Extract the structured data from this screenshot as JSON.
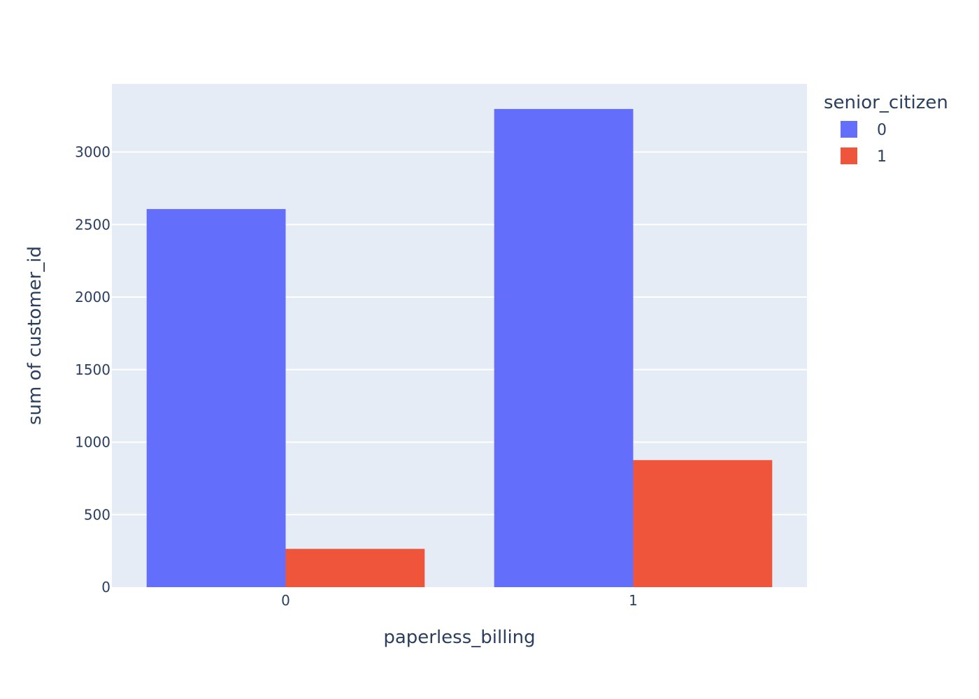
{
  "chart_data": {
    "type": "bar",
    "barmode": "group",
    "title": "",
    "xlabel": "paperless_billing",
    "ylabel": "sum of customer_id",
    "categories": [
      "0",
      "1"
    ],
    "ylim": [
      0,
      3470
    ],
    "yticks": [
      0,
      500,
      1000,
      1500,
      2000,
      2500,
      3000
    ],
    "grid": true,
    "legend": {
      "title": "senior_citizen",
      "placement": "top-right-outside"
    },
    "series": [
      {
        "name": "0",
        "color": "#636efa",
        "values": [
          2607,
          3297
        ]
      },
      {
        "name": "1",
        "color": "#ef553b",
        "values": [
          264,
          876
        ]
      }
    ],
    "colors": {
      "plot_background": "#e5ecf6",
      "grid": "#ffffff",
      "text": "#2a3f5f"
    }
  }
}
